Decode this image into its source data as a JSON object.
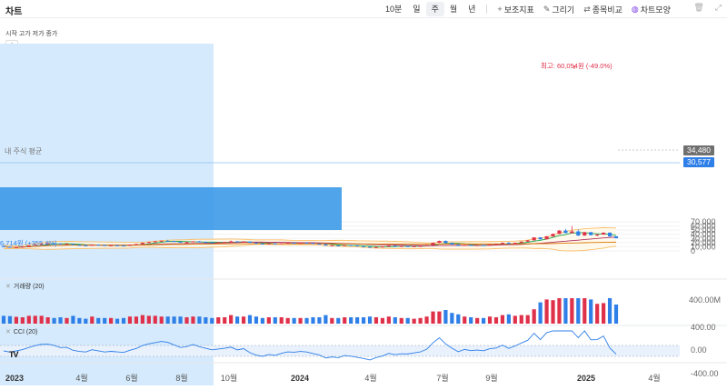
{
  "app": {
    "title": "차트"
  },
  "toolbar": {
    "interval": "10분",
    "periods": [
      "일",
      "주",
      "월",
      "년"
    ],
    "active_period": "주",
    "tools": [
      {
        "icon": "plus-icon",
        "label": "보조지표"
      },
      {
        "icon": "pencil-icon",
        "label": "그리기"
      },
      {
        "icon": "compare-icon",
        "label": "종목비교"
      },
      {
        "icon": "chart-style-icon",
        "label": "차트모양"
      }
    ],
    "right_icons": [
      "trash-icon",
      "expand-icon"
    ]
  },
  "legend": {
    "ohlc": "시작 고가 저가 종가",
    "collapse": "›"
  },
  "price_axis": {
    "ticks": [
      "70,000",
      "60,000",
      "50,000",
      "40,000",
      "30,000",
      "20,000",
      "10,000",
      "0"
    ],
    "min": 0,
    "max": 70000
  },
  "x_axis": {
    "labels": [
      "2023",
      "4월",
      "6월",
      "8월",
      "10월",
      "2024",
      "4월",
      "7월",
      "9월",
      "2025",
      "4월"
    ],
    "bold_labels": [
      "2023",
      "2024",
      "2025"
    ]
  },
  "price_tags": {
    "current": "34,480",
    "avg": "30,577"
  },
  "annotations": {
    "avg_price": "내 주식 평균",
    "low": "6,714원 (+355.4%)",
    "high": "최고: 60,054원 (-49.0%)"
  },
  "volume_pane": {
    "label": "거래량 (20)",
    "axis_tick": "400.00M",
    "close_icon": "✕"
  },
  "cci_pane": {
    "label": "CCI (20)",
    "axis_ticks": [
      "400.00",
      "0.00",
      "-400.00"
    ],
    "close_icon": "✕"
  },
  "colors": {
    "up": "#e0314a",
    "down": "#2f7fe8",
    "ma1": "#16a34a",
    "ma2": "#b03060",
    "ma3": "#d97706",
    "band": "#fbbf68",
    "cci": "#2f7fe8"
  },
  "chart_data": {
    "type": "candlestick",
    "candles": [
      [
        11.5,
        12.5,
        9.0,
        10.0
      ],
      [
        10.0,
        10.5,
        7.2,
        8.0
      ],
      [
        8.0,
        9.5,
        6.7,
        9.0
      ],
      [
        9.0,
        11.0,
        8.5,
        10.5
      ],
      [
        10.5,
        13.5,
        10.0,
        13.0
      ],
      [
        13.0,
        16.0,
        12.5,
        15.5
      ],
      [
        15.5,
        18.0,
        14.5,
        17.5
      ],
      [
        17.5,
        19.0,
        16.5,
        18.5
      ],
      [
        18.5,
        19.5,
        17.5,
        18.0
      ],
      [
        18.0,
        18.5,
        16.0,
        16.5
      ],
      [
        16.5,
        17.5,
        15.5,
        17.0
      ],
      [
        17.0,
        17.5,
        14.0,
        14.5
      ],
      [
        14.5,
        15.0,
        13.0,
        13.5
      ],
      [
        13.5,
        14.0,
        12.5,
        13.0
      ],
      [
        13.0,
        15.5,
        12.5,
        15.0
      ],
      [
        15.0,
        15.5,
        13.5,
        14.0
      ],
      [
        14.0,
        14.5,
        12.5,
        13.0
      ],
      [
        13.0,
        14.0,
        12.0,
        13.5
      ],
      [
        13.5,
        14.0,
        12.5,
        13.0
      ],
      [
        13.0,
        14.0,
        12.0,
        12.5
      ],
      [
        12.5,
        15.0,
        12.0,
        14.5
      ],
      [
        14.5,
        17.0,
        14.0,
        16.5
      ],
      [
        16.5,
        20.0,
        16.0,
        19.5
      ],
      [
        19.5,
        22.0,
        18.5,
        21.5
      ],
      [
        21.5,
        24.0,
        20.5,
        23.0
      ],
      [
        23.0,
        25.0,
        22.0,
        24.5
      ],
      [
        24.5,
        26.5,
        23.5,
        24.0
      ],
      [
        24.0,
        24.5,
        21.5,
        22.0
      ],
      [
        22.0,
        22.5,
        19.5,
        20.0
      ],
      [
        20.0,
        21.5,
        19.0,
        21.0
      ],
      [
        21.0,
        23.5,
        20.5,
        23.0
      ],
      [
        23.0,
        24.0,
        21.0,
        21.5
      ],
      [
        21.5,
        22.0,
        19.5,
        20.5
      ],
      [
        20.5,
        21.0,
        19.0,
        19.5
      ],
      [
        19.5,
        21.0,
        18.5,
        20.5
      ],
      [
        20.5,
        22.0,
        19.5,
        21.5
      ],
      [
        21.5,
        25.0,
        21.0,
        23.0
      ],
      [
        23.0,
        23.5,
        20.5,
        21.0
      ],
      [
        21.0,
        23.5,
        20.5,
        22.5
      ],
      [
        22.5,
        23.0,
        19.0,
        19.5
      ],
      [
        19.5,
        20.0,
        17.0,
        17.5
      ],
      [
        17.5,
        18.0,
        16.0,
        16.5
      ],
      [
        16.5,
        18.5,
        16.0,
        18.0
      ],
      [
        18.0,
        19.0,
        16.5,
        17.0
      ],
      [
        17.0,
        19.0,
        16.5,
        18.5
      ],
      [
        18.5,
        20.0,
        18.0,
        19.5
      ],
      [
        19.5,
        20.5,
        18.5,
        19.0
      ],
      [
        19.0,
        20.0,
        18.0,
        19.5
      ],
      [
        19.5,
        20.5,
        18.5,
        19.0
      ],
      [
        19.0,
        19.5,
        17.0,
        17.5
      ],
      [
        17.5,
        18.0,
        15.5,
        16.0
      ],
      [
        16.0,
        16.5,
        12.5,
        13.0
      ],
      [
        13.0,
        14.0,
        12.0,
        13.5
      ],
      [
        13.5,
        14.0,
        12.0,
        12.5
      ],
      [
        12.5,
        14.5,
        12.0,
        14.0
      ],
      [
        14.0,
        15.0,
        12.5,
        13.0
      ],
      [
        13.0,
        13.5,
        11.0,
        11.5
      ],
      [
        11.5,
        12.0,
        9.5,
        10.0
      ],
      [
        10.0,
        10.5,
        7.5,
        8.0
      ],
      [
        8.0,
        10.0,
        7.5,
        9.5
      ],
      [
        9.5,
        11.0,
        9.0,
        10.5
      ],
      [
        10.5,
        13.0,
        10.0,
        12.5
      ],
      [
        12.5,
        13.0,
        10.5,
        11.0
      ],
      [
        11.0,
        12.0,
        10.0,
        11.5
      ],
      [
        11.5,
        12.5,
        10.5,
        11.0
      ],
      [
        11.0,
        12.0,
        10.5,
        11.5
      ],
      [
        11.5,
        12.5,
        10.5,
        12.0
      ],
      [
        12.0,
        14.5,
        11.5,
        14.0
      ],
      [
        14.0,
        20.0,
        13.5,
        19.5
      ],
      [
        19.5,
        25.0,
        18.5,
        24.0
      ],
      [
        24.0,
        25.5,
        18.0,
        19.0
      ],
      [
        19.0,
        20.5,
        15.0,
        15.5
      ],
      [
        15.5,
        16.5,
        12.0,
        12.5
      ],
      [
        12.5,
        15.0,
        12.0,
        14.5
      ],
      [
        14.5,
        15.5,
        13.0,
        13.5
      ],
      [
        13.5,
        14.5,
        12.5,
        14.0
      ],
      [
        14.0,
        15.0,
        13.0,
        13.5
      ],
      [
        13.5,
        16.0,
        13.0,
        15.5
      ],
      [
        15.5,
        17.0,
        14.5,
        16.5
      ],
      [
        16.5,
        20.0,
        16.0,
        19.5
      ],
      [
        19.5,
        21.0,
        16.5,
        17.0
      ],
      [
        17.0,
        20.0,
        16.5,
        19.5
      ],
      [
        19.5,
        23.0,
        19.0,
        22.5
      ],
      [
        22.5,
        26.0,
        22.0,
        25.5
      ],
      [
        25.5,
        33.0,
        25.0,
        32.5
      ],
      [
        32.5,
        33.5,
        27.0,
        28.0
      ],
      [
        28.0,
        36.0,
        27.5,
        35.0
      ],
      [
        35.0,
        42.0,
        34.0,
        41.0
      ],
      [
        41.0,
        50.0,
        40.5,
        49.0
      ],
      [
        49.0,
        53.0,
        42.5,
        43.0
      ],
      [
        43.0,
        60.0,
        42.0,
        47.0
      ],
      [
        47.0,
        52.0,
        36.0,
        37.0
      ],
      [
        37.0,
        46.0,
        36.5,
        45.0
      ],
      [
        45.0,
        46.0,
        37.5,
        38.0
      ],
      [
        38.0,
        40.5,
        35.0,
        39.5
      ],
      [
        39.5,
        44.5,
        38.5,
        44.0
      ],
      [
        44.0,
        44.5,
        34.0,
        35.0
      ],
      [
        35.0,
        35.5,
        30.5,
        30.5
      ]
    ],
    "volume_max": 100
  }
}
